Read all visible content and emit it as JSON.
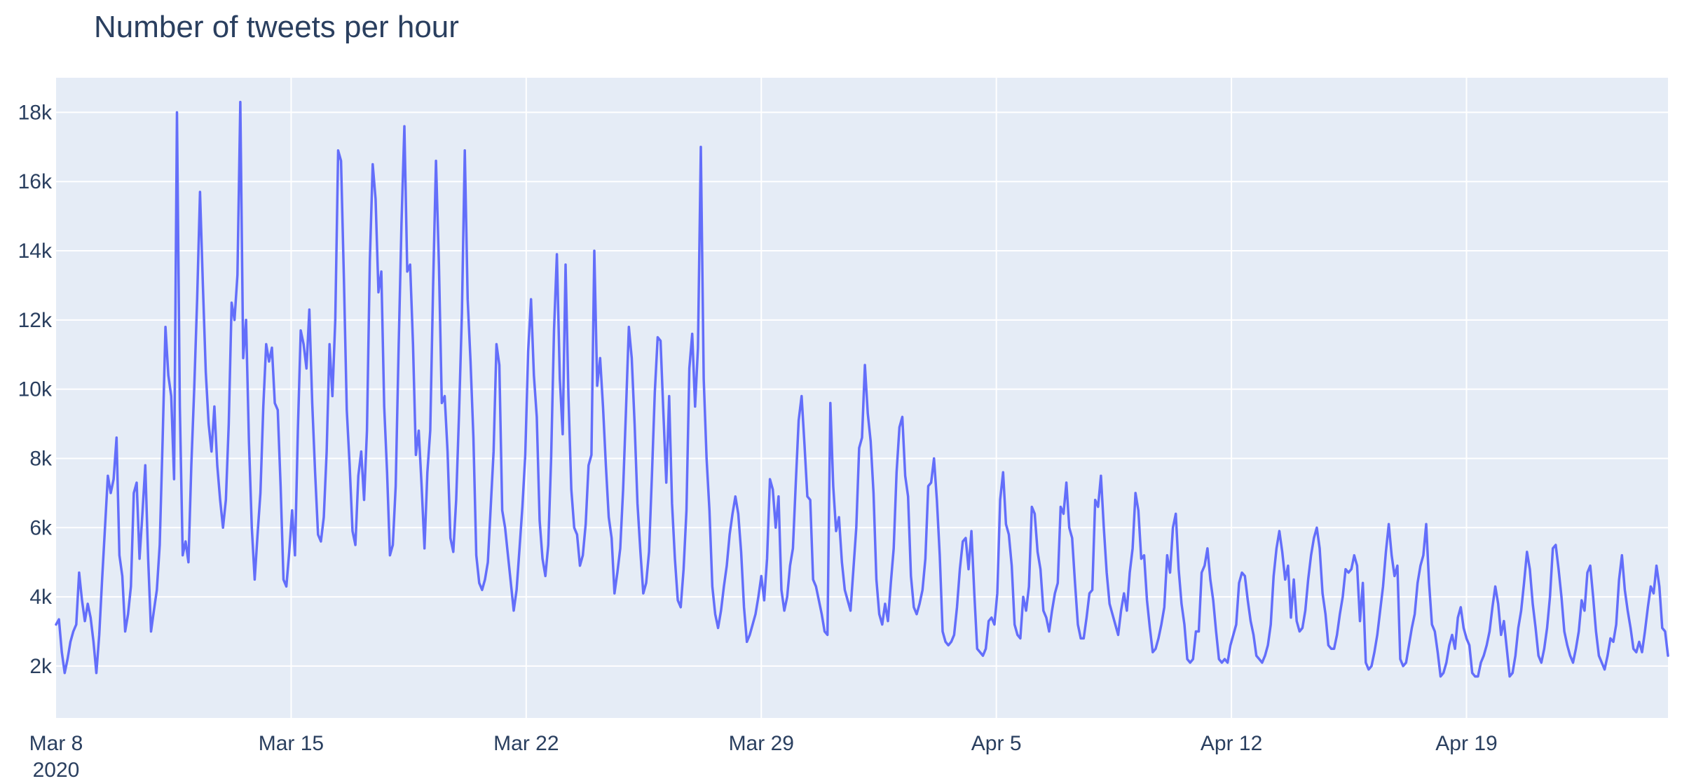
{
  "chart_data": {
    "type": "line",
    "title": "Number of tweets per hour",
    "xlabel": "",
    "ylabel": "",
    "x_start": "2020-03-08",
    "x_end": "2020-04-25",
    "xlim": [
      "2020-03-08",
      "2020-04-25"
    ],
    "ylim": [
      500,
      19000
    ],
    "grid": true,
    "colors": {
      "line": "#636efa",
      "plot_bg": "#e5ecf6",
      "grid": "#ffffff",
      "text": "#2a3f5f"
    },
    "x_ticks": [
      {
        "label": "Mar 8",
        "sublabel": "2020",
        "date": "2020-03-08"
      },
      {
        "label": "Mar 15",
        "date": "2020-03-15"
      },
      {
        "label": "Mar 22",
        "date": "2020-03-22"
      },
      {
        "label": "Mar 29",
        "date": "2020-03-29"
      },
      {
        "label": "Apr 5",
        "date": "2020-04-05"
      },
      {
        "label": "Apr 12",
        "date": "2020-04-12"
      },
      {
        "label": "Apr 19",
        "date": "2020-04-19"
      }
    ],
    "y_ticks": [
      {
        "label": "2k",
        "value": 2000
      },
      {
        "label": "4k",
        "value": 4000
      },
      {
        "label": "6k",
        "value": 6000
      },
      {
        "label": "8k",
        "value": 8000
      },
      {
        "label": "10k",
        "value": 10000
      },
      {
        "label": "12k",
        "value": 12000
      },
      {
        "label": "14k",
        "value": 14000
      },
      {
        "label": "16k",
        "value": 16000
      },
      {
        "label": "18k",
        "value": 18000
      }
    ],
    "series": [
      {
        "values": [
          3200,
          3350,
          2400,
          1800,
          2200,
          2700,
          3000,
          3200,
          4700,
          3900,
          3300,
          3800,
          3400,
          2700,
          1800,
          2900,
          4500,
          6000,
          7500,
          7000,
          7400,
          8600,
          5200,
          4600,
          3000,
          3500,
          4300,
          7000,
          7300,
          5100,
          6400,
          7800,
          5100,
          3000,
          3600,
          4200,
          5500,
          8500,
          11800,
          10400,
          9800,
          7400,
          18000,
          9500,
          5200,
          5600,
          5000,
          7800,
          10000,
          12600,
          15700,
          13000,
          10500,
          9000,
          8200,
          9500,
          7800,
          6800,
          6000,
          6800,
          9000,
          12500,
          12000,
          13300,
          18300,
          10900,
          12000,
          8500,
          6000,
          4500,
          5800,
          7000,
          9500,
          11300,
          10800,
          11200,
          9600,
          9400,
          7200,
          4500,
          4300,
          5300,
          6500,
          5200,
          8800,
          11700,
          11300,
          10600,
          12300,
          9600,
          7600,
          5800,
          5600,
          6300,
          8200,
          11300,
          9800,
          12000,
          16900,
          16600,
          13200,
          9400,
          7800,
          5900,
          5500,
          7500,
          8200,
          6800,
          8800,
          13700,
          16500,
          15500,
          12800,
          13400,
          9500,
          7600,
          5200,
          5500,
          7200,
          11200,
          14800,
          17600,
          13400,
          13600,
          11300,
          8100,
          8800,
          7200,
          5400,
          7600,
          8800,
          13000,
          16600,
          13600,
          9600,
          9800,
          8200,
          5700,
          5300,
          6800,
          9300,
          12200,
          16900,
          12600,
          10800,
          8600,
          5200,
          4400,
          4200,
          4500,
          5000,
          6600,
          8200,
          11300,
          10700,
          6500,
          6000,
          5200,
          4400,
          3600,
          4200,
          5400,
          6600,
          8100,
          11100,
          12600,
          10400,
          9200,
          6200,
          5100,
          4600,
          5500,
          8000,
          11700,
          13900,
          10300,
          8700,
          13600,
          9800,
          7100,
          6000,
          5800,
          4900,
          5200,
          6100,
          7800,
          8100,
          14000,
          10100,
          10900,
          9500,
          7800,
          6300,
          5700,
          4100,
          4700,
          5400,
          7100,
          9400,
          11800,
          10900,
          9000,
          6700,
          5300,
          4100,
          4400,
          5300,
          7500,
          9900,
          11500,
          11400,
          9300,
          7300,
          9800,
          6700,
          5100,
          3900,
          3700,
          4800,
          6500,
          10600,
          11600,
          9500,
          11200,
          17000,
          10300,
          8000,
          6500,
          4300,
          3500,
          3100,
          3600,
          4300,
          4900,
          5800,
          6400,
          6900,
          6400,
          5300,
          3700,
          2700,
          2900,
          3200,
          3500,
          4000,
          4600,
          3900,
          5100,
          7400,
          7100,
          6000,
          6900,
          4200,
          3600,
          4000,
          4900,
          5400,
          7300,
          9100,
          9800,
          8400,
          6900,
          6800,
          4500,
          4300,
          3900,
          3500,
          3000,
          2900,
          9600,
          7200,
          5900,
          6300,
          5000,
          4200,
          3900,
          3600,
          4800,
          6000,
          8300,
          8600,
          10700,
          9300,
          8500,
          7000,
          4500,
          3500,
          3200,
          3800,
          3300,
          4400,
          5400,
          7600,
          8900,
          9200,
          7500,
          6900,
          4600,
          3700,
          3500,
          3800,
          4200,
          5100,
          7200,
          7300,
          8000,
          6800,
          5200,
          3000,
          2700,
          2600,
          2700,
          2900,
          3700,
          4800,
          5600,
          5700,
          4800,
          5900,
          4100,
          2500,
          2400,
          2300,
          2500,
          3300,
          3400,
          3200,
          4100,
          6800,
          7600,
          6100,
          5800,
          4900,
          3200,
          2900,
          2800,
          4000,
          3600,
          4300,
          6600,
          6400,
          5300,
          4800,
          3600,
          3400,
          3000,
          3600,
          4100,
          4400,
          6600,
          6400,
          7300,
          6000,
          5700,
          4400,
          3200,
          2800,
          2800,
          3400,
          4100,
          4200,
          6800,
          6600,
          7500,
          6000,
          4700,
          3800,
          3500,
          3200,
          2900,
          3600,
          4100,
          3600,
          4700,
          5400,
          7000,
          6500,
          5100,
          5200,
          3900,
          3100,
          2400,
          2500,
          2800,
          3200,
          3700,
          5200,
          4700,
          6000,
          6400,
          4800,
          3800,
          3200,
          2200,
          2100,
          2200,
          3000,
          3000,
          4700,
          4900,
          5400,
          4500,
          3900,
          3000,
          2200,
          2100,
          2200,
          2100,
          2600,
          2900,
          3200,
          4400,
          4700,
          4600,
          3900,
          3300,
          2900,
          2300,
          2200,
          2100,
          2300,
          2600,
          3200,
          4600,
          5400,
          5900,
          5300,
          4500,
          4900,
          3400,
          4500,
          3300,
          3000,
          3100,
          3600,
          4500,
          5200,
          5700,
          6000,
          5400,
          4100,
          3500,
          2600,
          2500,
          2500,
          2900,
          3500,
          4000,
          4800,
          4700,
          4800,
          5200,
          4900,
          3300,
          4400,
          2100,
          1900,
          2000,
          2400,
          2900,
          3600,
          4300,
          5300,
          6100,
          5200,
          4600,
          4900,
          2200,
          2000,
          2100,
          2600,
          3100,
          3500,
          4400,
          4900,
          5200,
          6100,
          4400,
          3200,
          3000,
          2400,
          1700,
          1800,
          2100,
          2600,
          2900,
          2500,
          3400,
          3700,
          3100,
          2800,
          2600,
          1800,
          1700,
          1700,
          2100,
          2300,
          2600,
          3000,
          3700,
          4300,
          3800,
          2900,
          3300,
          2500,
          1700,
          1800,
          2300,
          3100,
          3600,
          4400,
          5300,
          4800,
          3800,
          3100,
          2300,
          2100,
          2500,
          3100,
          4000,
          5400,
          5500,
          4800,
          4000,
          3000,
          2600,
          2300,
          2100,
          2500,
          3000,
          3900,
          3600,
          4700,
          4900,
          4000,
          3000,
          2300,
          2100,
          1900,
          2300,
          2800,
          2700,
          3200,
          4500,
          5200,
          4200,
          3600,
          3100,
          2500,
          2400,
          2700,
          2400,
          3000,
          3700,
          4300,
          4100,
          4900,
          4300,
          3100,
          3000,
          2300
        ]
      }
    ]
  }
}
